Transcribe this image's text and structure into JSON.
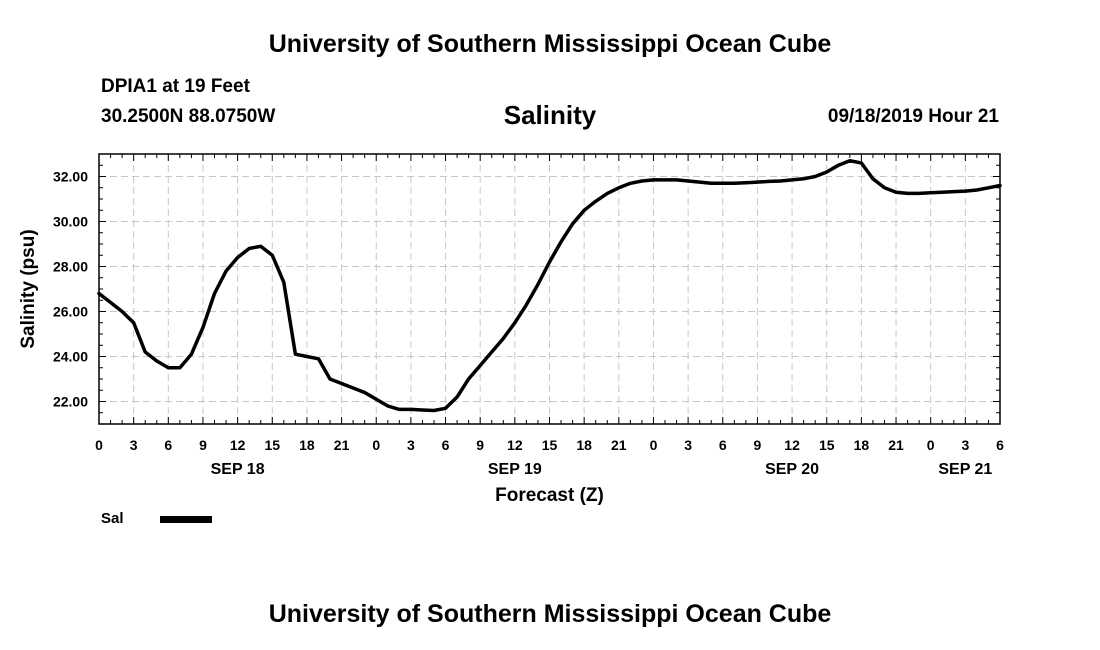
{
  "header": {
    "title": "University of Southern Mississippi Ocean Cube",
    "station": "DPIA1 at 19 Feet",
    "coords": "30.2500N 88.0750W",
    "timestamp": "09/18/2019 Hour 21"
  },
  "footer": {
    "title": "University of Southern Mississippi Ocean Cube"
  },
  "chart_data": {
    "type": "line",
    "title": "Salinity",
    "xlabel": "Forecast (Z)",
    "ylabel": "Salinity (psu)",
    "xlim": [
      0,
      78
    ],
    "ylim": [
      21,
      33
    ],
    "grid": true,
    "yticks": [
      22,
      24,
      26,
      28,
      30,
      32
    ],
    "ytick_labels": [
      "22.00",
      "24.00",
      "26.00",
      "28.00",
      "30.00",
      "32.00"
    ],
    "xticks": [
      0,
      3,
      6,
      9,
      12,
      15,
      18,
      21,
      24,
      27,
      30,
      33,
      36,
      39,
      42,
      45,
      48,
      51,
      54,
      57,
      60,
      63,
      66,
      69,
      72,
      75,
      78
    ],
    "xtick_labels": [
      "0",
      "3",
      "6",
      "9",
      "12",
      "15",
      "18",
      "21",
      "0",
      "3",
      "6",
      "9",
      "12",
      "15",
      "18",
      "21",
      "0",
      "3",
      "6",
      "9",
      "12",
      "15",
      "18",
      "21",
      "0",
      "3",
      "6"
    ],
    "date_labels": [
      {
        "hour": 12,
        "text": "SEP 18"
      },
      {
        "hour": 36,
        "text": "SEP 19"
      },
      {
        "hour": 60,
        "text": "SEP 20"
      },
      {
        "hour": 75,
        "text": "SEP 21"
      }
    ],
    "series": [
      {
        "name": "Sal",
        "color": "#000000",
        "x": [
          0,
          1,
          2,
          3,
          4,
          5,
          6,
          7,
          8,
          9,
          10,
          11,
          12,
          13,
          14,
          15,
          16,
          17,
          18,
          19,
          20,
          21,
          22,
          23,
          24,
          25,
          26,
          27,
          28,
          29,
          30,
          31,
          32,
          33,
          34,
          35,
          36,
          37,
          38,
          39,
          40,
          41,
          42,
          43,
          44,
          45,
          46,
          47,
          48,
          49,
          50,
          51,
          52,
          53,
          54,
          55,
          56,
          57,
          58,
          59,
          60,
          61,
          62,
          63,
          64,
          65,
          66,
          67,
          68,
          69,
          70,
          71,
          72,
          73,
          74,
          75,
          76,
          77,
          78
        ],
        "values": [
          26.8,
          26.4,
          26.0,
          25.5,
          24.2,
          23.8,
          23.5,
          23.5,
          24.1,
          25.3,
          26.8,
          27.8,
          28.4,
          28.8,
          28.9,
          28.5,
          27.3,
          24.1,
          24.0,
          23.9,
          23.0,
          22.8,
          22.6,
          22.4,
          22.1,
          21.8,
          21.65,
          21.65,
          21.62,
          21.6,
          21.7,
          22.2,
          23.0,
          23.6,
          24.2,
          24.8,
          25.5,
          26.3,
          27.2,
          28.2,
          29.1,
          29.9,
          30.5,
          30.9,
          31.25,
          31.5,
          31.7,
          31.8,
          31.85,
          31.85,
          31.85,
          31.8,
          31.75,
          31.7,
          31.7,
          31.7,
          31.72,
          31.75,
          31.78,
          31.8,
          31.85,
          31.9,
          32.0,
          32.2,
          32.5,
          32.7,
          32.6,
          31.9,
          31.5,
          31.3,
          31.25,
          31.25,
          31.28,
          31.3,
          31.33,
          31.35,
          31.4,
          31.5,
          31.6
        ]
      }
    ]
  }
}
